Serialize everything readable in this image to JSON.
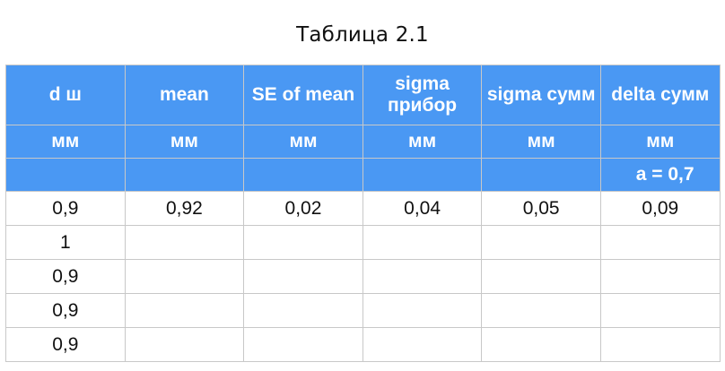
{
  "title": "Таблица 2.1",
  "colors": {
    "header_bg": "#4a98f3",
    "header_text": "#ffffff",
    "grid": "#c8c8c8"
  },
  "table": {
    "headers": [
      "d ш",
      "mean",
      "SE of mean",
      "sigma прибор",
      "sigma сумм",
      "delta сумм"
    ],
    "units": [
      "мм",
      "мм",
      "мм",
      "мм",
      "мм",
      "мм"
    ],
    "note": "a = 0,7",
    "rows": [
      [
        "0,9",
        "0,92",
        "0,02",
        "0,04",
        "0,05",
        "0,09"
      ],
      [
        "1",
        "",
        "",
        "",
        "",
        ""
      ],
      [
        "0,9",
        "",
        "",
        "",
        "",
        ""
      ],
      [
        "0,9",
        "",
        "",
        "",
        "",
        ""
      ],
      [
        "0,9",
        "",
        "",
        "",
        "",
        ""
      ]
    ]
  }
}
